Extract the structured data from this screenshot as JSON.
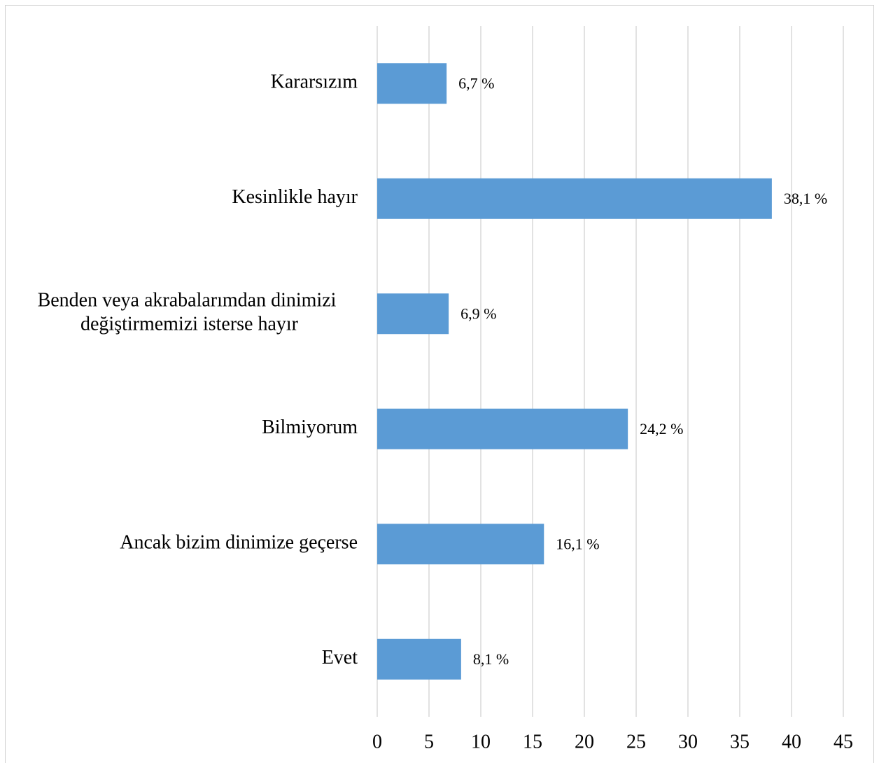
{
  "chart_data": {
    "type": "bar",
    "orientation": "horizontal",
    "categories": [
      "Kararsızım",
      "Kesinlikle hayır",
      "Benden veya akrabalarımdan dinimizi değiştirmemizi isterse hayır",
      "Bilmiyorum",
      "Ancak bizim dinimize geçerse",
      "Evet"
    ],
    "values": [
      6.7,
      38.1,
      6.9,
      24.2,
      16.1,
      8.1
    ],
    "value_labels": [
      "6,7 %",
      "38,1 %",
      "6,9 %",
      "24,2 %",
      "16,1 %",
      "8,1 %"
    ],
    "color": "#5b9bd5",
    "xlim": [
      0,
      45
    ],
    "xticks": [
      0,
      5,
      10,
      15,
      20,
      25,
      30,
      35,
      40,
      45
    ],
    "grid": true
  }
}
